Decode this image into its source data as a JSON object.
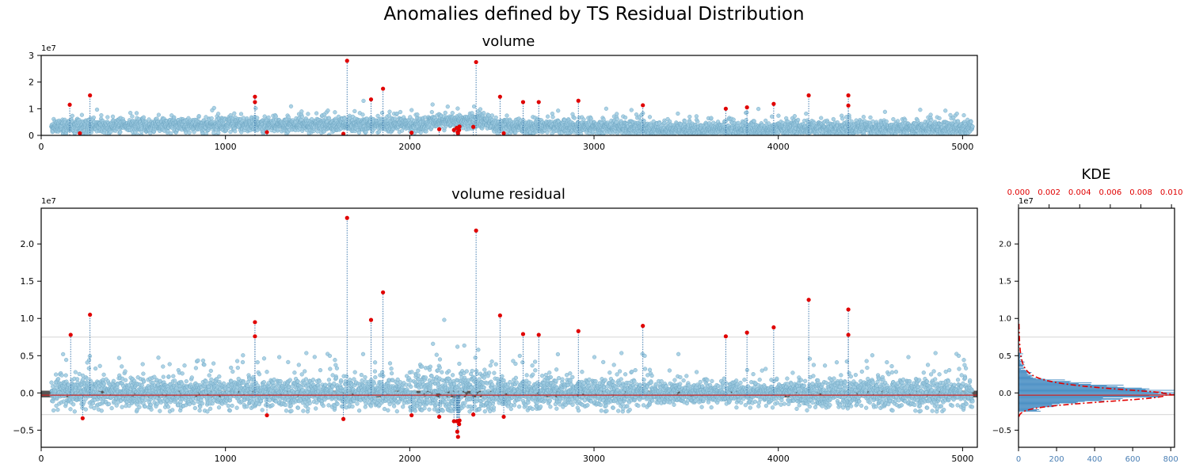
{
  "suptitle": "Anomalies defined by TS Residual Distribution",
  "colors": {
    "normal_fill": "#9ecae1",
    "normal_edge": "#6ba3c0",
    "anomaly": "#e00000",
    "stem": "#2f6fa8",
    "hist": "#4a8fc4",
    "kde": "#e00000",
    "band": "#555555",
    "center_line": "#cc2222",
    "threshold_line": "#dddddd"
  },
  "chart_data": [
    {
      "id": "volume",
      "type": "scatter",
      "title": "volume",
      "xlabel": "",
      "ylabel": "",
      "xlim": [
        0,
        5080
      ],
      "ylim": [
        0,
        30000000
      ],
      "x_ticks": [
        0,
        1000,
        2000,
        3000,
        4000,
        5000
      ],
      "y_ticks": [
        0,
        10000000,
        20000000,
        30000000
      ],
      "y_tick_labels": [
        "0",
        "1",
        "2",
        "3"
      ],
      "y_offset_label": "1e7",
      "series": [
        {
          "points_summary": "≈5000 observations, mostly 0.1e7–0.8e7",
          "anomalies": [
            [
              155,
              11500000
            ],
            [
              210,
              800000
            ],
            [
              265,
              15000000
            ],
            [
              1160,
              14500000
            ],
            [
              1160,
              12500000
            ],
            [
              1225,
              1200000
            ],
            [
              1640,
              600000
            ],
            [
              1660,
              28000000
            ],
            [
              1790,
              13500000
            ],
            [
              1855,
              17500000
            ],
            [
              2010,
              1000000
            ],
            [
              2160,
              2300000
            ],
            [
              2240,
              2000000
            ],
            [
              2255,
              2800000
            ],
            [
              2260,
              1200000
            ],
            [
              2262,
              800000
            ],
            [
              2268,
              2000000
            ],
            [
              2270,
              3300000
            ],
            [
              2345,
              3200000
            ],
            [
              2360,
              27500000
            ],
            [
              2490,
              14500000
            ],
            [
              2510,
              800000
            ],
            [
              2615,
              12500000
            ],
            [
              2700,
              12500000
            ],
            [
              2915,
              13000000
            ],
            [
              3265,
              11300000
            ],
            [
              3715,
              10000000
            ],
            [
              3830,
              10500000
            ],
            [
              3975,
              11800000
            ],
            [
              4165,
              15000000
            ],
            [
              4380,
              15000000
            ],
            [
              4380,
              11200000
            ]
          ]
        }
      ]
    },
    {
      "id": "volume-residual",
      "type": "scatter",
      "title": "volume residual",
      "xlabel": "",
      "ylabel": "",
      "xlim": [
        0,
        5080
      ],
      "ylim": [
        -7300000,
        24800000
      ],
      "x_ticks": [
        0,
        1000,
        2000,
        3000,
        4000,
        5000
      ],
      "y_ticks": [
        -5000000,
        0,
        5000000,
        10000000,
        15000000,
        20000000
      ],
      "y_tick_labels": [
        "−0.5",
        "0.0",
        "0.5",
        "1.0",
        "1.5",
        "2.0"
      ],
      "y_offset_label": "1e7",
      "center": -300000,
      "thresholds": [
        7500000,
        -2900000
      ],
      "series": [
        {
          "points_summary": "≈5000 residuals, mostly within ±0.5e7",
          "anomalies": [
            [
              160,
              7800000
            ],
            [
              225,
              -3400000
            ],
            [
              265,
              10500000
            ],
            [
              1160,
              9500000
            ],
            [
              1160,
              7600000
            ],
            [
              1225,
              -3000000
            ],
            [
              1640,
              -3500000
            ],
            [
              1660,
              23500000
            ],
            [
              1790,
              9800000
            ],
            [
              1855,
              13500000
            ],
            [
              2010,
              -3000000
            ],
            [
              2160,
              -3200000
            ],
            [
              2240,
              -3800000
            ],
            [
              2255,
              -3800000
            ],
            [
              2258,
              -5200000
            ],
            [
              2262,
              -5900000
            ],
            [
              2268,
              -4200000
            ],
            [
              2270,
              -3700000
            ],
            [
              2345,
              -2900000
            ],
            [
              2360,
              21800000
            ],
            [
              2490,
              10400000
            ],
            [
              2510,
              -3200000
            ],
            [
              2615,
              7900000
            ],
            [
              2700,
              7800000
            ],
            [
              2915,
              8300000
            ],
            [
              3265,
              9000000
            ],
            [
              3715,
              7600000
            ],
            [
              3830,
              8100000
            ],
            [
              3975,
              8800000
            ],
            [
              4165,
              12500000
            ],
            [
              4380,
              11200000
            ],
            [
              4380,
              7800000
            ]
          ]
        }
      ]
    },
    {
      "id": "kde",
      "type": "bar",
      "orientation": "horizontal",
      "title": "KDE",
      "ylim": [
        -7300000,
        24800000
      ],
      "y_ticks": [
        -5000000,
        0,
        5000000,
        10000000,
        15000000,
        20000000
      ],
      "y_tick_labels": [
        "−0.5",
        "0.0",
        "0.5",
        "1.0",
        "1.5",
        "2.0"
      ],
      "y_offset_label": "1e7",
      "x_bottom": {
        "range": [
          0,
          820
        ],
        "ticks": [
          0,
          200,
          400,
          600,
          800
        ]
      },
      "x_top": {
        "range": [
          0,
          0.0102
        ],
        "ticks": [
          0,
          0.002,
          0.004,
          0.006,
          0.008,
          0.01
        ],
        "tick_labels": [
          "0.000",
          "0.002",
          "0.004",
          "0.006",
          "0.008",
          "0.010"
        ]
      },
      "thresholds": [
        7500000,
        -2900000
      ],
      "center": -300000
    }
  ]
}
